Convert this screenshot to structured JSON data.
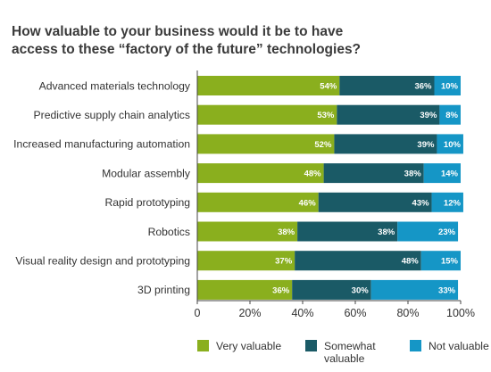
{
  "chart_data": {
    "type": "bar",
    "orientation": "horizontal",
    "stacked": true,
    "title_lines": [
      "How valuable to your business would it be to have",
      "access to these “factory of the future” technologies?"
    ],
    "categories": [
      "Advanced materials technology",
      "Predictive supply chain analytics",
      "Increased manufacturing automation",
      "Modular assembly",
      "Rapid prototyping",
      "Robotics",
      "Visual reality design and prototyping",
      "3D printing"
    ],
    "series": [
      {
        "name": "Very valuable",
        "legend_lines": [
          "Very valuable"
        ],
        "color": "#8aaf1e",
        "values": [
          54,
          53,
          52,
          48,
          46,
          38,
          37,
          36
        ]
      },
      {
        "name": "Somewhat valuable",
        "legend_lines": [
          "Somewhat",
          "valuable"
        ],
        "color": "#1a5a66",
        "values": [
          36,
          39,
          39,
          38,
          43,
          38,
          48,
          30
        ]
      },
      {
        "name": "Not valuable",
        "legend_lines": [
          "Not valuable"
        ],
        "color": "#1596c6",
        "values": [
          10,
          8,
          10,
          14,
          12,
          23,
          15,
          33
        ]
      }
    ],
    "xlim": [
      0,
      100
    ],
    "xticks": [
      "0",
      "20%",
      "40%",
      "60%",
      "80%",
      "100%"
    ],
    "data_label_suffix": "%",
    "grid": false,
    "legend_position": "bottom"
  }
}
